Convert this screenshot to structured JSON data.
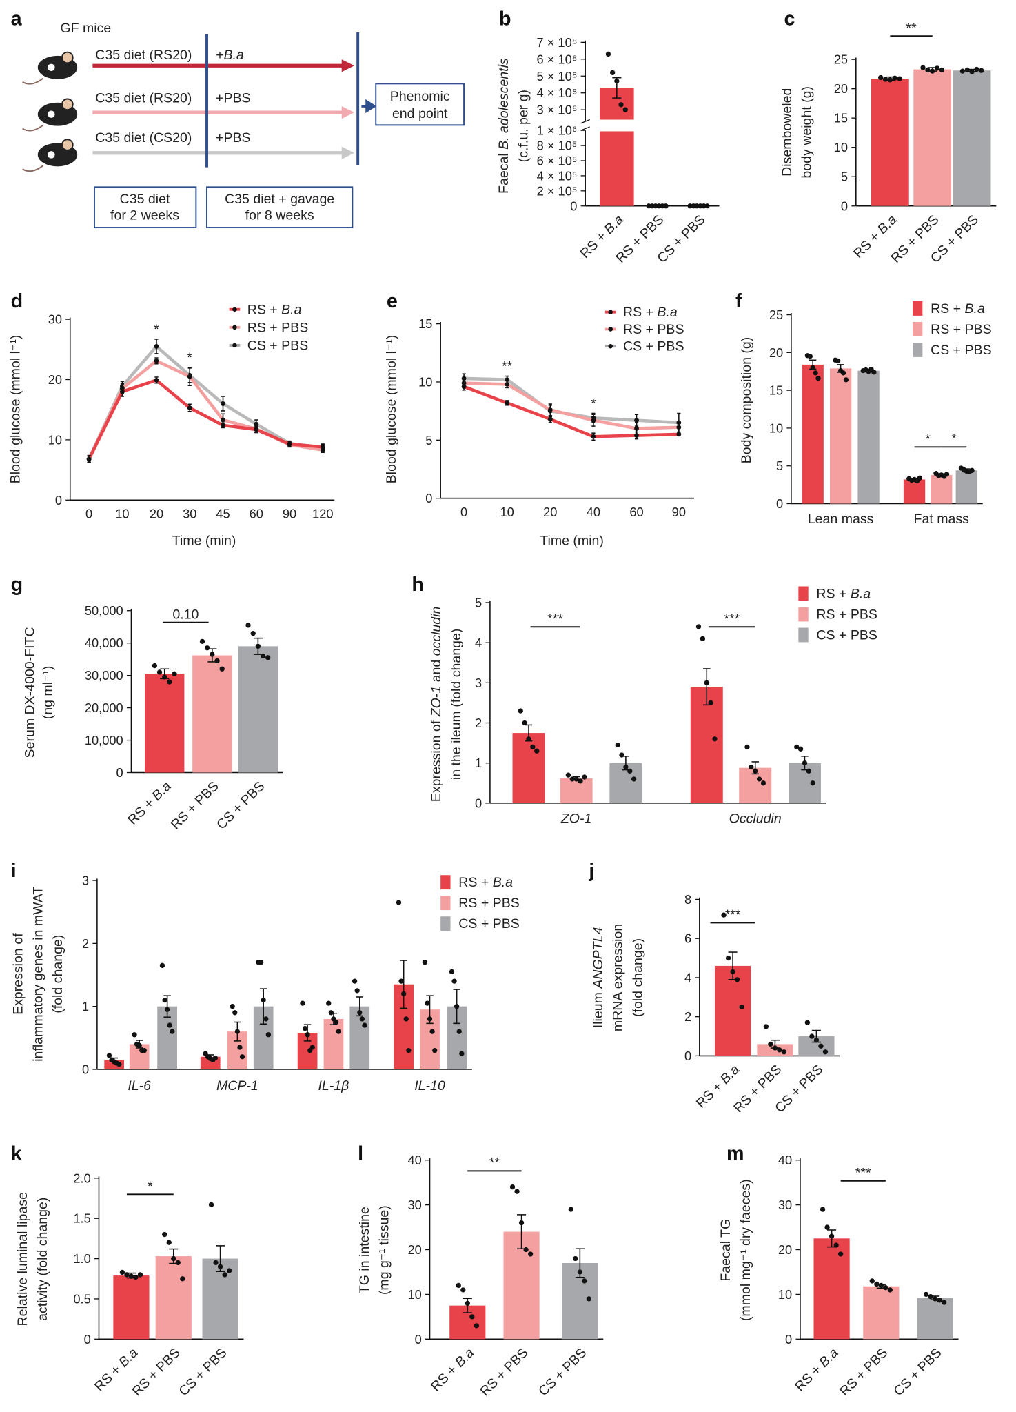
{
  "colors": {
    "rs_ba": "#e8434a",
    "rs_pbs": "#f4a0a0",
    "cs_pbs": "#a7a8ab",
    "schema_blue": "#2f4e8c"
  },
  "groups": [
    "RS + B.a",
    "RS + PBS",
    "CS + PBS"
  ],
  "panel_a": {
    "label": "a",
    "title": "GF mice",
    "rows": [
      {
        "diet": "C35 diet (RS20)",
        "gavage": "+B.a"
      },
      {
        "diet": "C35 diet (RS20)",
        "gavage": "+PBS"
      },
      {
        "diet": "C35 diet (CS20)",
        "gavage": "+PBS"
      }
    ],
    "end_box": [
      "Phenomic",
      "end point"
    ],
    "phase1": [
      "C35 diet",
      "for 2 weeks"
    ],
    "phase2": [
      "C35 diet + gavage",
      "for 8 weeks"
    ]
  },
  "chart_data": [
    {
      "id": "b",
      "label": "b",
      "type": "bar",
      "ylabel": [
        "Faecal B. adolescentis",
        "(c.f.u. per g)"
      ],
      "categories": [
        "RS + B.a",
        "RS + PBS",
        "CS + PBS"
      ],
      "values": [
        430000000,
        0,
        0
      ],
      "sem": [
        60000000,
        0,
        0
      ],
      "points": [
        [
          630000000,
          520000000,
          470000000,
          330000000,
          300000000
        ],
        [
          0,
          0,
          0,
          0,
          0,
          0
        ],
        [
          0,
          0,
          0,
          0,
          0,
          0
        ]
      ],
      "broken_axis": true,
      "yticks_upper": [
        300000000,
        400000000,
        500000000,
        600000000,
        700000000
      ],
      "ytick_labels_upper": [
        "3 × 10⁸",
        "4 × 10⁸",
        "5 × 10⁸",
        "6 × 10⁸",
        "7 × 10⁸"
      ],
      "yticks_lower": [
        0,
        200000,
        400000,
        600000,
        800000,
        1000000
      ],
      "ytick_labels_lower": [
        "0",
        "2 × 10⁵",
        "4 × 10⁵",
        "6 × 10⁵",
        "8 × 10⁵",
        "1 × 10⁶"
      ]
    },
    {
      "id": "c",
      "label": "c",
      "type": "bar",
      "ylabel": [
        "Disemboweled",
        "body weight (g)"
      ],
      "categories": [
        "RS + B.a",
        "RS + PBS",
        "CS + PBS"
      ],
      "values": [
        21.7,
        23.3,
        23.1
      ],
      "sem": [
        0.3,
        0.3,
        0.2
      ],
      "points": [
        [
          21.9,
          21.6,
          21.5,
          21.8,
          21.7
        ],
        [
          23.6,
          23.2,
          23.0,
          23.5,
          23.2
        ],
        [
          23.0,
          23.2,
          22.9,
          23.3,
          23.1
        ]
      ],
      "ylim": [
        0,
        25
      ],
      "yticks": [
        0,
        5,
        10,
        15,
        20,
        25
      ],
      "ytick_labels": [
        "0",
        "5",
        "10",
        "15",
        "20",
        "25"
      ],
      "annotations": [
        "**"
      ]
    },
    {
      "id": "d",
      "label": "d",
      "type": "line",
      "xlabel": "Time (min)",
      "ylabel": [
        "Blood glucose (mmol l⁻¹)"
      ],
      "x": [
        "0",
        "10",
        "20",
        "30",
        "45",
        "60",
        "90",
        "120"
      ],
      "ylim": [
        0,
        30
      ],
      "yticks": [
        0,
        10,
        20,
        30
      ],
      "ytick_labels": [
        "0",
        "10",
        "20",
        "30"
      ],
      "series": [
        {
          "name": "RS + B.a",
          "values": [
            6.8,
            18.0,
            19.9,
            15.3,
            12.4,
            11.7,
            9.3,
            8.8
          ],
          "sem": [
            0.6,
            0.8,
            0.5,
            0.6,
            0.4,
            0.5,
            0.4,
            0.5
          ]
        },
        {
          "name": "RS + PBS",
          "values": [
            6.8,
            18.5,
            23.1,
            20.5,
            13.3,
            11.8,
            9.2,
            8.3
          ],
          "sem": [
            0.5,
            0.8,
            0.5,
            1.5,
            1.0,
            0.6,
            0.4,
            0.4
          ]
        },
        {
          "name": "CS + PBS",
          "values": [
            6.8,
            18.9,
            25.5,
            20.7,
            16.0,
            12.6,
            9.4,
            8.7
          ],
          "sem": [
            0.5,
            0.8,
            1.2,
            1.2,
            1.2,
            0.7,
            0.4,
            0.5
          ]
        }
      ],
      "annotations": [
        {
          "x": "20",
          "text": "*"
        },
        {
          "x": "30",
          "text": "*"
        }
      ]
    },
    {
      "id": "e",
      "label": "e",
      "type": "line",
      "xlabel": "Time (min)",
      "ylabel": [
        "Blood glucose (mmol l⁻¹)"
      ],
      "x": [
        "0",
        "10",
        "20",
        "40",
        "60",
        "90"
      ],
      "ylim": [
        0,
        15
      ],
      "yticks": [
        0,
        5,
        10,
        15
      ],
      "ytick_labels": [
        "0",
        "5",
        "10",
        "15"
      ],
      "series": [
        {
          "name": "RS + B.a",
          "values": [
            9.6,
            8.2,
            6.8,
            5.3,
            5.4,
            5.5
          ],
          "sem": [
            0.3,
            0.2,
            0.3,
            0.3,
            0.3,
            0.1
          ]
        },
        {
          "name": "RS + PBS",
          "values": [
            9.9,
            9.8,
            7.6,
            6.7,
            6.0,
            6.1
          ],
          "sem": [
            0.3,
            0.3,
            0.5,
            0.5,
            0.5,
            0.5
          ]
        },
        {
          "name": "CS + PBS",
          "values": [
            10.3,
            10.2,
            7.5,
            6.9,
            6.7,
            6.5
          ],
          "sem": [
            0.4,
            0.3,
            0.5,
            0.4,
            0.5,
            0.8
          ]
        }
      ],
      "annotations": [
        {
          "x": "10",
          "text": "**"
        },
        {
          "x": "40",
          "text": "*"
        }
      ]
    },
    {
      "id": "f",
      "label": "f",
      "type": "bar",
      "ylabel": [
        "Body composition (g)"
      ],
      "categories": [
        "Lean mass",
        "Fat mass"
      ],
      "legend": [
        "RS + B.a",
        "RS + PBS",
        "CS + PBS"
      ],
      "series": [
        {
          "name": "RS + B.a",
          "values": [
            18.4,
            3.2
          ],
          "sem": [
            0.6,
            0.1
          ]
        },
        {
          "name": "RS + PBS",
          "values": [
            17.9,
            3.8
          ],
          "sem": [
            0.5,
            0.15
          ]
        },
        {
          "name": "CS + PBS",
          "values": [
            17.6,
            4.4
          ],
          "sem": [
            0.15,
            0.2
          ]
        }
      ],
      "points": [
        [
          [
            19.6,
            19.5,
            18.0,
            17.3,
            16.6
          ],
          [
            19.0,
            18.9,
            17.6,
            17.3,
            16.4
          ],
          [
            17.6,
            17.7,
            17.5,
            17.8,
            17.4
          ]
        ],
        [
          [
            3.3,
            3.1,
            3.2,
            3.0,
            3.4
          ],
          [
            4.0,
            3.7,
            3.8,
            3.6,
            3.9
          ],
          [
            4.7,
            4.5,
            4.3,
            4.2,
            4.4
          ]
        ]
      ],
      "ylim": [
        0,
        25
      ],
      "yticks": [
        0,
        5,
        10,
        15,
        20,
        25
      ],
      "ytick_labels": [
        "0",
        "5",
        "10",
        "15",
        "20",
        "25"
      ],
      "annotations": [
        "*",
        "*"
      ]
    },
    {
      "id": "g",
      "label": "g",
      "type": "bar",
      "ylabel": [
        "Serum DX-4000-FITC",
        "(ng ml⁻¹)"
      ],
      "categories": [
        "RS + B.a",
        "RS + PBS",
        "CS + PBS"
      ],
      "values": [
        30500,
        36200,
        39000
      ],
      "sem": [
        1500,
        2000,
        2500
      ],
      "points": [
        [
          33000,
          31000,
          29500,
          28000,
          30500
        ],
        [
          40500,
          38500,
          36500,
          34500,
          32000
        ],
        [
          45500,
          43000,
          39000,
          36000,
          35500
        ]
      ],
      "ylim": [
        0,
        50000
      ],
      "yticks": [
        0,
        10000,
        20000,
        30000,
        40000,
        50000
      ],
      "ytick_labels": [
        "0",
        "10,000",
        "20,000",
        "30,000",
        "40,000",
        "50,000"
      ],
      "annotations": [
        "0.10"
      ]
    },
    {
      "id": "h",
      "label": "h",
      "type": "bar",
      "ylabel": [
        "Expression of ZO-1 and occludin",
        "in the ileum (fold change)"
      ],
      "categories": [
        "ZO-1",
        "Occludin"
      ],
      "legend": [
        "RS + B.a",
        "RS + PBS",
        "CS + PBS"
      ],
      "series": [
        {
          "name": "RS + B.a",
          "values": [
            1.75,
            2.9
          ],
          "sem": [
            0.2,
            0.45
          ]
        },
        {
          "name": "RS + PBS",
          "values": [
            0.62,
            0.88
          ],
          "sem": [
            0.04,
            0.15
          ]
        },
        {
          "name": "CS + PBS",
          "values": [
            1.0,
            1.0
          ],
          "sem": [
            0.17,
            0.17
          ]
        }
      ],
      "points": [
        [
          [
            2.3,
            2.0,
            1.6,
            1.4,
            1.3
          ],
          [
            0.7,
            0.6,
            0.6,
            0.55,
            0.65
          ],
          [
            1.45,
            1.2,
            0.9,
            0.8,
            0.6
          ]
        ],
        [
          [
            4.4,
            4.1,
            3.0,
            2.5,
            1.6
          ],
          [
            1.4,
            0.9,
            0.8,
            0.6,
            0.5
          ],
          [
            1.4,
            1.35,
            1.0,
            0.8,
            0.5
          ]
        ]
      ],
      "ylim": [
        0,
        5
      ],
      "yticks": [
        0,
        1,
        2,
        3,
        4,
        5
      ],
      "ytick_labels": [
        "0",
        "1",
        "2",
        "3",
        "4",
        "5"
      ],
      "annotations": [
        "***",
        "***"
      ]
    },
    {
      "id": "i",
      "label": "i",
      "type": "bar",
      "ylabel": [
        "Expression of",
        "inflammatory genes in mWAT",
        "(fold change)"
      ],
      "categories": [
        "IL-6",
        "MCP-1",
        "IL-1β",
        "IL-10"
      ],
      "legend": [
        "RS + B.a",
        "RS + PBS",
        "CS + PBS"
      ],
      "series": [
        {
          "name": "RS + B.a",
          "values": [
            0.15,
            0.2,
            0.58,
            1.35
          ],
          "sem": [
            0.03,
            0.03,
            0.13,
            0.38
          ]
        },
        {
          "name": "RS + PBS",
          "values": [
            0.4,
            0.6,
            0.8,
            0.95
          ],
          "sem": [
            0.06,
            0.15,
            0.09,
            0.22
          ]
        },
        {
          "name": "CS + PBS",
          "values": [
            1.0,
            1.0,
            1.0,
            1.0
          ],
          "sem": [
            0.17,
            0.28,
            0.15,
            0.27
          ]
        }
      ],
      "points": [
        [
          [
            0.22,
            0.15,
            0.12,
            0.1,
            0.08
          ],
          [
            0.55,
            0.4,
            0.38,
            0.3,
            0.3
          ],
          [
            1.65,
            1.1,
            0.95,
            0.7,
            0.6
          ]
        ],
        [
          [
            0.25,
            0.2,
            0.17,
            0.15,
            0.18
          ],
          [
            1.0,
            0.9,
            0.6,
            0.35,
            0.2
          ],
          [
            1.7,
            1.7,
            1.1,
            0.8,
            0.55
          ]
        ],
        [
          [
            1.05,
            0.65,
            0.55,
            0.3,
            0.35
          ],
          [
            1.05,
            0.9,
            0.8,
            0.75,
            0.6
          ],
          [
            1.4,
            1.25,
            0.9,
            0.8,
            0.7
          ]
        ],
        [
          [
            2.65,
            1.4,
            1.2,
            0.8,
            0.3
          ],
          [
            1.7,
            1.05,
            0.8,
            0.6,
            0.3
          ],
          [
            1.55,
            1.4,
            1.0,
            0.6,
            0.25
          ]
        ]
      ],
      "ylim": [
        0,
        3
      ],
      "yticks": [
        0,
        1,
        2,
        3
      ],
      "ytick_labels": [
        "0",
        "1",
        "2",
        "3"
      ]
    },
    {
      "id": "j",
      "label": "j",
      "type": "bar",
      "ylabel": [
        "Ilieum ANGPTL4",
        "mRNA expression",
        "(fold change)"
      ],
      "categories": [
        "RS + B.a",
        "RS + PBS",
        "CS + PBS"
      ],
      "values": [
        4.6,
        0.6,
        1.0
      ],
      "sem": [
        0.7,
        0.2,
        0.3
      ],
      "points": [
        [
          7.2,
          5.0,
          4.3,
          3.9,
          2.5
        ],
        [
          1.5,
          0.6,
          0.4,
          0.3,
          0.2
        ],
        [
          1.7,
          1.0,
          0.8,
          0.5,
          0.2
        ]
      ],
      "ylim": [
        0,
        8
      ],
      "yticks": [
        0,
        2,
        4,
        6,
        8
      ],
      "ytick_labels": [
        "0",
        "2",
        "4",
        "6",
        "8"
      ],
      "annotations": [
        "***"
      ]
    },
    {
      "id": "k",
      "label": "k",
      "type": "bar",
      "ylabel": [
        "Relative luminal lipase",
        "activity (fold change)"
      ],
      "categories": [
        "RS + B.a",
        "RS + PBS",
        "CS + PBS"
      ],
      "values": [
        0.79,
        1.03,
        1.0
      ],
      "sem": [
        0.03,
        0.09,
        0.16
      ],
      "points": [
        [
          0.83,
          0.8,
          0.78,
          0.77,
          0.8
        ],
        [
          1.3,
          1.2,
          1.0,
          0.95,
          0.75
        ],
        [
          1.67,
          0.95,
          0.9,
          0.8,
          0.85
        ]
      ],
      "ylim": [
        0,
        2
      ],
      "yticks": [
        0,
        0.5,
        1,
        1.5,
        2
      ],
      "ytick_labels": [
        "0",
        "0.5",
        "1.0",
        "1.5",
        "2.0"
      ],
      "annotations": [
        "*"
      ]
    },
    {
      "id": "l",
      "label": "l",
      "type": "bar",
      "ylabel": [
        "TG in intestine",
        "(mg g⁻¹ tissue)"
      ],
      "categories": [
        "RS + B.a",
        "RS + PBS",
        "CS + PBS"
      ],
      "values": [
        7.5,
        24,
        17
      ],
      "sem": [
        1.6,
        3.8,
        3.2
      ],
      "points": [
        [
          12,
          11,
          8,
          5,
          3
        ],
        [
          34,
          33,
          26,
          20,
          19
        ],
        [
          29,
          18,
          15,
          13,
          9
        ]
      ],
      "ylim": [
        0,
        40
      ],
      "yticks": [
        0,
        10,
        20,
        30,
        40
      ],
      "ytick_labels": [
        "0",
        "10",
        "20",
        "30",
        "40"
      ],
      "annotations": [
        "**"
      ]
    },
    {
      "id": "m",
      "label": "m",
      "type": "bar",
      "ylabel": [
        "Faecal TG",
        "(mmol mg⁻¹ dry faeces)"
      ],
      "categories": [
        "RS + B.a",
        "RS + PBS",
        "CS + PBS"
      ],
      "values": [
        22.5,
        11.8,
        9.2
      ],
      "sem": [
        1.9,
        0.4,
        0.4
      ],
      "points": [
        [
          29,
          25,
          23,
          21,
          19
        ],
        [
          13,
          12.3,
          12,
          11.5,
          11
        ],
        [
          10,
          9.5,
          9,
          8.7,
          8.2
        ]
      ],
      "ylim": [
        0,
        40
      ],
      "yticks": [
        0,
        10,
        20,
        30,
        40
      ],
      "ytick_labels": [
        "0",
        "10",
        "20",
        "30",
        "40"
      ],
      "annotations": [
        "***"
      ]
    }
  ]
}
